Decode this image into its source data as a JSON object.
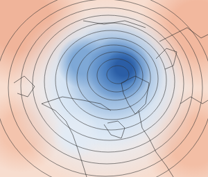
{
  "chart_data": {
    "type": "map",
    "xlim": [
      0,
      300
    ],
    "ylim": [
      0,
      256
    ],
    "tick_labels": false,
    "grid": false,
    "color": "#f7ddcf",
    "anomaly_blobs": [
      {
        "center": [
          30,
          30
        ],
        "radius": 95,
        "color": "#f0b49a"
      },
      {
        "center": [
          285,
          40
        ],
        "radius": 85,
        "color": "#f2b89e"
      },
      {
        "center": [
          30,
          190
        ],
        "radius": 60,
        "color": "#f4c4ad"
      },
      {
        "center": [
          280,
          205
        ],
        "radius": 75,
        "color": "#f3bea5"
      },
      {
        "center": [
          150,
          135
        ],
        "radius": 135,
        "color": "#e6eff8"
      },
      {
        "center": [
          160,
          115
        ],
        "radius": 100,
        "color": "#c8dbef"
      },
      {
        "center": [
          110,
          195
        ],
        "radius": 35,
        "color": "#e2ebf5"
      },
      {
        "center": [
          165,
          105
        ],
        "radius": 72,
        "color": "#8db2db"
      },
      {
        "center": [
          120,
          90
        ],
        "radius": 38,
        "color": "#7ea8d6"
      },
      {
        "center": [
          172,
          100
        ],
        "radius": 46,
        "color": "#4a7fc0"
      },
      {
        "center": [
          178,
          98
        ],
        "radius": 26,
        "color": "#2b5ea6"
      }
    ],
    "contours": [
      {
        "center": [
          170,
          108
        ],
        "rx": 16,
        "ry": 13
      },
      {
        "center": [
          168,
          109
        ],
        "rx": 28,
        "ry": 24
      },
      {
        "center": [
          166,
          110
        ],
        "rx": 40,
        "ry": 35
      },
      {
        "center": [
          164,
          112
        ],
        "rx": 53,
        "ry": 47
      },
      {
        "center": [
          162,
          114
        ],
        "rx": 66,
        "ry": 59
      },
      {
        "center": [
          160,
          116
        ],
        "rx": 80,
        "ry": 72
      },
      {
        "center": [
          158,
          118
        ],
        "rx": 94,
        "ry": 85
      },
      {
        "center": [
          156,
          121
        ],
        "rx": 109,
        "ry": 99
      },
      {
        "center": [
          154,
          124
        ],
        "rx": 124,
        "ry": 113
      },
      {
        "center": [
          152,
          127
        ],
        "rx": 140,
        "ry": 128
      },
      {
        "center": [
          150,
          130
        ],
        "rx": 157,
        "ry": 144
      }
    ],
    "coastlines": [
      [
        [
          60,
          150
        ],
        [
          80,
          160
        ],
        [
          95,
          175
        ],
        [
          105,
          195
        ],
        [
          112,
          215
        ],
        [
          120,
          240
        ],
        [
          125,
          256
        ]
      ],
      [
        [
          60,
          150
        ],
        [
          90,
          140
        ],
        [
          120,
          145
        ],
        [
          145,
          150
        ],
        [
          160,
          160
        ]
      ],
      [
        [
          150,
          180
        ],
        [
          160,
          195
        ],
        [
          175,
          200
        ],
        [
          180,
          185
        ],
        [
          170,
          175
        ],
        [
          155,
          178
        ]
      ],
      [
        [
          200,
          160
        ],
        [
          205,
          185
        ],
        [
          215,
          200
        ],
        [
          225,
          220
        ],
        [
          240,
          240
        ],
        [
          250,
          256
        ]
      ],
      [
        [
          175,
          120
        ],
        [
          195,
          110
        ],
        [
          215,
          120
        ],
        [
          210,
          150
        ],
        [
          195,
          165
        ],
        [
          185,
          150
        ],
        [
          178,
          135
        ],
        [
          175,
          120
        ]
      ],
      [
        [
          230,
          60
        ],
        [
          250,
          50
        ],
        [
          270,
          40
        ],
        [
          290,
          55
        ],
        [
          300,
          50
        ]
      ],
      [
        [
          225,
          85
        ],
        [
          240,
          70
        ],
        [
          255,
          75
        ],
        [
          250,
          95
        ],
        [
          238,
          100
        ]
      ],
      [
        [
          120,
          30
        ],
        [
          150,
          35
        ],
        [
          180,
          30
        ],
        [
          210,
          40
        ]
      ],
      [
        [
          20,
          120
        ],
        [
          35,
          110
        ],
        [
          50,
          125
        ],
        [
          40,
          140
        ],
        [
          25,
          135
        ]
      ],
      [
        [
          260,
          150
        ],
        [
          275,
          140
        ],
        [
          292,
          150
        ],
        [
          300,
          145
        ]
      ]
    ]
  }
}
